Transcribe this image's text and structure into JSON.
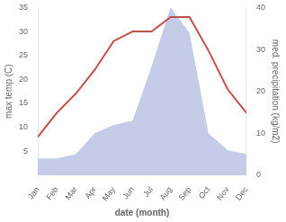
{
  "chart_data": {
    "type": "line",
    "categories": [
      "Jan",
      "Feb",
      "Mar",
      "Apr",
      "May",
      "Jun",
      "Jul",
      "Aug",
      "Sep",
      "Oct",
      "Nov",
      "Dec"
    ],
    "series": [
      {
        "type": "line",
        "color": "#c0504d",
        "values": [
          8,
          13,
          17,
          22,
          28,
          30,
          30,
          33,
          33,
          26,
          18,
          13
        ]
      },
      {
        "type": "area",
        "color": "#c5cce8",
        "axis": "y2",
        "values": [
          4,
          4,
          5,
          10,
          12,
          13,
          26,
          40,
          34,
          10,
          6,
          5
        ]
      }
    ],
    "xlabel": "date (month)",
    "ylabel": "max temp (C)",
    "y2label": "med. precipitation (kg/m2)",
    "ylim": [
      0,
      35
    ],
    "yticks": [
      5,
      10,
      15,
      20,
      25,
      30,
      35
    ],
    "y2lim": [
      0,
      40
    ],
    "y2ticks": [
      0,
      10,
      20,
      30,
      40
    ],
    "grid": false
  }
}
